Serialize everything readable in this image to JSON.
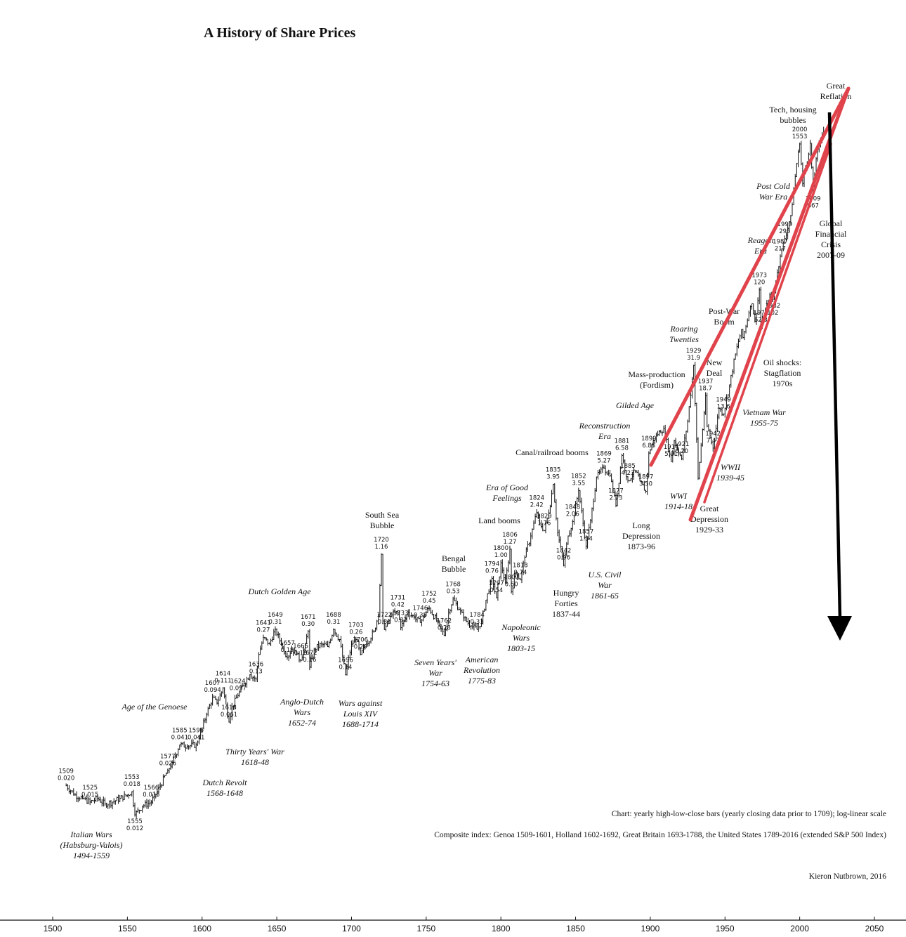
{
  "title": "A History of Share Prices",
  "notes": {
    "chart_note": "Chart: yearly high-low-close bars (yearly closing data prior to 1709); log-linear scale",
    "composite_note": "Composite index: Genoa 1509-1601, Holland 1602-1692, Great Britain 1693-1788, the United States 1789-2016 (extended S&P 500 Index)",
    "author": "Kieron Nutbrown, 2016"
  },
  "colors": {
    "series": "#111111",
    "channel": "#e0434b",
    "arrow": "#000000",
    "text": "#111111"
  },
  "chart_data": {
    "type": "line",
    "title": "A History of Share Prices",
    "xlabel": "",
    "ylabel": "",
    "y_scale": "log",
    "y_axis_shown": false,
    "xlim": [
      1500,
      2050
    ],
    "grid": false,
    "x_ticks": [
      "1500",
      "1550",
      "1600",
      "1650",
      "1700",
      "1750",
      "1800",
      "1850",
      "1900",
      "1950",
      "2000",
      "2050"
    ],
    "series": [
      {
        "style": "high-low-close bars",
        "points": [
          [
            1509,
            0.02
          ],
          [
            1515,
            0.017
          ],
          [
            1520,
            0.016
          ],
          [
            1525,
            0.015
          ],
          [
            1530,
            0.016
          ],
          [
            1535,
            0.0145
          ],
          [
            1540,
            0.015
          ],
          [
            1545,
            0.016
          ],
          [
            1550,
            0.017
          ],
          [
            1553,
            0.018
          ],
          [
            1555,
            0.012
          ],
          [
            1560,
            0.014
          ],
          [
            1566,
            0.015
          ],
          [
            1570,
            0.018
          ],
          [
            1577,
            0.026
          ],
          [
            1580,
            0.03
          ],
          [
            1585,
            0.041
          ],
          [
            1590,
            0.04
          ],
          [
            1596,
            0.041
          ],
          [
            1600,
            0.055
          ],
          [
            1603,
            0.07
          ],
          [
            1607,
            0.094
          ],
          [
            1610,
            0.085
          ],
          [
            1614,
            0.111
          ],
          [
            1618,
            0.061
          ],
          [
            1620,
            0.08
          ],
          [
            1624,
            0.097
          ],
          [
            1628,
            0.12
          ],
          [
            1632,
            0.14
          ],
          [
            1636,
            0.13
          ],
          [
            1638,
            0.2
          ],
          [
            1641,
            0.27
          ],
          [
            1645,
            0.24
          ],
          [
            1649,
            0.31
          ],
          [
            1653,
            0.24
          ],
          [
            1657,
            0.19
          ],
          [
            1660,
            0.22
          ],
          [
            1663,
            0.2
          ],
          [
            1666,
            0.18
          ],
          [
            1669,
            0.24
          ],
          [
            1671,
            0.3
          ],
          [
            1672,
            0.16
          ],
          [
            1675,
            0.22
          ],
          [
            1680,
            0.24
          ],
          [
            1684,
            0.23
          ],
          [
            1688,
            0.31
          ],
          [
            1692,
            0.26
          ],
          [
            1696,
            0.14
          ],
          [
            1700,
            0.24
          ],
          [
            1703,
            0.26
          ],
          [
            1706,
            0.2
          ],
          [
            1710,
            0.24
          ],
          [
            1715,
            0.3
          ],
          [
            1718,
            0.4
          ],
          [
            1720,
            1.16
          ],
          [
            1721,
            0.36
          ],
          [
            1722,
            0.31
          ],
          [
            1727,
            0.4
          ],
          [
            1731,
            0.42
          ],
          [
            1733,
            0.32
          ],
          [
            1738,
            0.42
          ],
          [
            1742,
            0.38
          ],
          [
            1746,
            0.35
          ],
          [
            1750,
            0.42
          ],
          [
            1752,
            0.45
          ],
          [
            1757,
            0.36
          ],
          [
            1762,
            0.28
          ],
          [
            1765,
            0.42
          ],
          [
            1768,
            0.53
          ],
          [
            1772,
            0.44
          ],
          [
            1775,
            0.38
          ],
          [
            1780,
            0.33
          ],
          [
            1784,
            0.31
          ],
          [
            1787,
            0.36
          ],
          [
            1790,
            0.52
          ],
          [
            1794,
            0.76
          ],
          [
            1797,
            0.54
          ],
          [
            1800,
            1.0
          ],
          [
            1803,
            0.7
          ],
          [
            1806,
            1.27
          ],
          [
            1807,
            0.6
          ],
          [
            1810,
            0.85
          ],
          [
            1813,
            0.74
          ],
          [
            1816,
            1.1
          ],
          [
            1820,
            1.6
          ],
          [
            1824,
            2.42
          ],
          [
            1826,
            2.0
          ],
          [
            1829,
            1.76
          ],
          [
            1832,
            2.4
          ],
          [
            1835,
            3.95
          ],
          [
            1838,
            1.7
          ],
          [
            1842,
            0.96
          ],
          [
            1845,
            1.6
          ],
          [
            1848,
            2.06
          ],
          [
            1852,
            3.55
          ],
          [
            1855,
            2.0
          ],
          [
            1857,
            1.34
          ],
          [
            1860,
            2.1
          ],
          [
            1864,
            4.5
          ],
          [
            1869,
            5.27
          ],
          [
            1873,
            4.6
          ],
          [
            1877,
            2.73
          ],
          [
            1881,
            6.58
          ],
          [
            1885,
            4.23
          ],
          [
            1890,
            5.0
          ],
          [
            1893,
            4.2
          ],
          [
            1897,
            3.5
          ],
          [
            1899,
            6.85
          ],
          [
            1902,
            8.5
          ],
          [
            1906,
            10.0
          ],
          [
            1909,
            10.5
          ],
          [
            1914,
            5.91
          ],
          [
            1916,
            8.5
          ],
          [
            1921,
            6.2
          ],
          [
            1925,
            12.0
          ],
          [
            1929,
            31.9
          ],
          [
            1932,
            4.4
          ],
          [
            1937,
            18.7
          ],
          [
            1938,
            11.0
          ],
          [
            1942,
            7.47
          ],
          [
            1946,
            15.0
          ],
          [
            1949,
            13.6
          ],
          [
            1953,
            22.7
          ],
          [
            1957,
            39.0
          ],
          [
            1961,
            60.0
          ],
          [
            1962,
            52.0
          ],
          [
            1966,
            80.0
          ],
          [
            1968,
            94.1
          ],
          [
            1970,
            69.2
          ],
          [
            1973,
            120
          ],
          [
            1974,
            62.3
          ],
          [
            1980,
            110
          ],
          [
            1982,
            102
          ],
          [
            1987,
            217
          ],
          [
            1990,
            295
          ],
          [
            1994,
            440
          ],
          [
            1998,
            1100
          ],
          [
            2000,
            1553
          ],
          [
            2002,
            776
          ],
          [
            2007,
            1576
          ],
          [
            2009,
            667
          ],
          [
            2011,
            1200
          ],
          [
            2016,
            2100
          ]
        ]
      }
    ],
    "data_labels": [
      {
        "year": "1509",
        "value": "0.020"
      },
      {
        "year": "1525",
        "value": "0.015"
      },
      {
        "year": "1553",
        "value": "0.018"
      },
      {
        "year": "1555",
        "value": "0.012"
      },
      {
        "year": "1566",
        "value": "0.015"
      },
      {
        "year": "1577",
        "value": "0.026"
      },
      {
        "year": "1585",
        "value": "0.041"
      },
      {
        "year": "1596",
        "value": "0.041"
      },
      {
        "year": "1607",
        "value": "0.094"
      },
      {
        "year": "1614",
        "value": "0.111"
      },
      {
        "year": "1618",
        "value": "0.061"
      },
      {
        "year": "1624",
        "value": "0.097"
      },
      {
        "year": "1636",
        "value": "0.13"
      },
      {
        "year": "1641",
        "value": "0.27"
      },
      {
        "year": "1649",
        "value": "0.31"
      },
      {
        "year": "1657",
        "value": "0.19"
      },
      {
        "year": "1666",
        "value": "0.18"
      },
      {
        "year": "1671",
        "value": "0.30"
      },
      {
        "year": "1672",
        "value": "0.16"
      },
      {
        "year": "1688",
        "value": "0.31"
      },
      {
        "year": "1696",
        "value": "0.14"
      },
      {
        "year": "1703",
        "value": "0.26"
      },
      {
        "year": "1706",
        "value": "0.20"
      },
      {
        "year": "1720",
        "value": "1.16"
      },
      {
        "year": "1722",
        "value": "0.31"
      },
      {
        "year": "1731",
        "value": "0.42"
      },
      {
        "year": "1733",
        "value": "0.32"
      },
      {
        "year": "1746",
        "value": "0.35"
      },
      {
        "year": "1752",
        "value": "0.45"
      },
      {
        "year": "1762",
        "value": "0.28"
      },
      {
        "year": "1768",
        "value": "0.53"
      },
      {
        "year": "1784",
        "value": "0.31"
      },
      {
        "year": "1794",
        "value": "0.76"
      },
      {
        "year": "1797",
        "value": "0.54"
      },
      {
        "year": "1800",
        "value": "1.00"
      },
      {
        "year": "1806",
        "value": "1.27"
      },
      {
        "year": "1807",
        "value": "0.60"
      },
      {
        "year": "1813",
        "value": "0.74"
      },
      {
        "year": "1824",
        "value": "2.42"
      },
      {
        "year": "1829",
        "value": "1.76"
      },
      {
        "year": "1835",
        "value": "3.95"
      },
      {
        "year": "1842",
        "value": "0.96"
      },
      {
        "year": "1848",
        "value": "2.06"
      },
      {
        "year": "1852",
        "value": "3.55"
      },
      {
        "year": "1857",
        "value": "1.34"
      },
      {
        "year": "1869",
        "value": "5.27"
      },
      {
        "year": "1877",
        "value": "2.73"
      },
      {
        "year": "1881",
        "value": "6.58"
      },
      {
        "year": "1885",
        "value": "4.23"
      },
      {
        "year": "1897",
        "value": "3.50"
      },
      {
        "year": "1899",
        "value": "6.85"
      },
      {
        "year": "1914",
        "value": "5.91"
      },
      {
        "year": "1921",
        "value": "6.20"
      },
      {
        "year": "1929",
        "value": "31.9"
      },
      {
        "year": "1937",
        "value": "18.7"
      },
      {
        "year": "1942",
        "value": "7.47"
      },
      {
        "year": "1949",
        "value": "13.6"
      },
      {
        "year": "1974",
        "value": "62.3"
      },
      {
        "year": "1973",
        "value": "120"
      },
      {
        "year": "1982",
        "value": "102"
      },
      {
        "year": "1987",
        "value": "217"
      },
      {
        "year": "1990",
        "value": "295"
      },
      {
        "year": "2000",
        "value": "1553"
      },
      {
        "year": "2009",
        "value": "667"
      }
    ],
    "annotations": [
      {
        "lines": [
          "Italian Wars",
          "(Habsburg-Valois)",
          "1494-1559"
        ],
        "italic": true
      },
      {
        "lines": [
          "Age of the Genoese"
        ],
        "italic": true
      },
      {
        "lines": [
          "Dutch Revolt",
          "1568-1648"
        ],
        "italic": true
      },
      {
        "lines": [
          "Thirty Years' War",
          "1618-48"
        ],
        "italic": true
      },
      {
        "lines": [
          "Anglo-Dutch",
          "Wars",
          "1652-74"
        ],
        "italic": true
      },
      {
        "lines": [
          "Wars against",
          "Louis XIV",
          "1688-1714"
        ],
        "italic": true
      },
      {
        "lines": [
          "Dutch Golden Age"
        ],
        "italic": true
      },
      {
        "lines": [
          "South Sea",
          "Bubble"
        ],
        "italic": false
      },
      {
        "lines": [
          "Seven Years'",
          "War",
          "1754-63"
        ],
        "italic": true
      },
      {
        "lines": [
          "American",
          "Revolution",
          "1775-83"
        ],
        "italic": true
      },
      {
        "lines": [
          "Bengal",
          "Bubble"
        ],
        "italic": false
      },
      {
        "lines": [
          "Napoleonic",
          "Wars",
          "1803-15"
        ],
        "italic": true
      },
      {
        "lines": [
          "Land booms"
        ],
        "italic": false
      },
      {
        "lines": [
          "Era of Good",
          "Feelings"
        ],
        "italic": true
      },
      {
        "lines": [
          "Hungry",
          "Forties",
          "1837-44"
        ],
        "italic": false
      },
      {
        "lines": [
          "U.S. Civil",
          "War",
          "1861-65"
        ],
        "italic": true
      },
      {
        "lines": [
          "Canal/railroad booms"
        ],
        "italic": false
      },
      {
        "lines": [
          "Reconstruction",
          "Era"
        ],
        "italic": true
      },
      {
        "lines": [
          "Long",
          "Depression",
          "1873-96"
        ],
        "italic": false
      },
      {
        "lines": [
          "Gilded Age"
        ],
        "italic": true
      },
      {
        "lines": [
          "Mass-production",
          "(Fordism)"
        ],
        "italic": false
      },
      {
        "lines": [
          "Roaring",
          "Twenties"
        ],
        "italic": true
      },
      {
        "lines": [
          "WWI",
          "1914-18"
        ],
        "italic": true
      },
      {
        "lines": [
          "Great",
          "Depression",
          "1929-33"
        ],
        "italic": false
      },
      {
        "lines": [
          "New",
          "Deal"
        ],
        "italic": false
      },
      {
        "lines": [
          "WWII",
          "1939-45"
        ],
        "italic": true
      },
      {
        "lines": [
          "Post-War",
          "Boom"
        ],
        "italic": false
      },
      {
        "lines": [
          "Vietnam War",
          "1955-75"
        ],
        "italic": true
      },
      {
        "lines": [
          "Oil shocks:",
          "Stagflation",
          "1970s"
        ],
        "italic": false
      },
      {
        "lines": [
          "Reagan",
          "Era"
        ],
        "italic": true
      },
      {
        "lines": [
          "Post Cold",
          "War Era"
        ],
        "italic": true
      },
      {
        "lines": [
          "Tech, housing",
          "bubbles"
        ],
        "italic": false
      },
      {
        "lines": [
          "Great",
          "Reflation"
        ],
        "italic": false
      },
      {
        "lines": [
          "Global",
          "Financial",
          "Crisis",
          "2007-09"
        ],
        "italic": false
      }
    ]
  }
}
